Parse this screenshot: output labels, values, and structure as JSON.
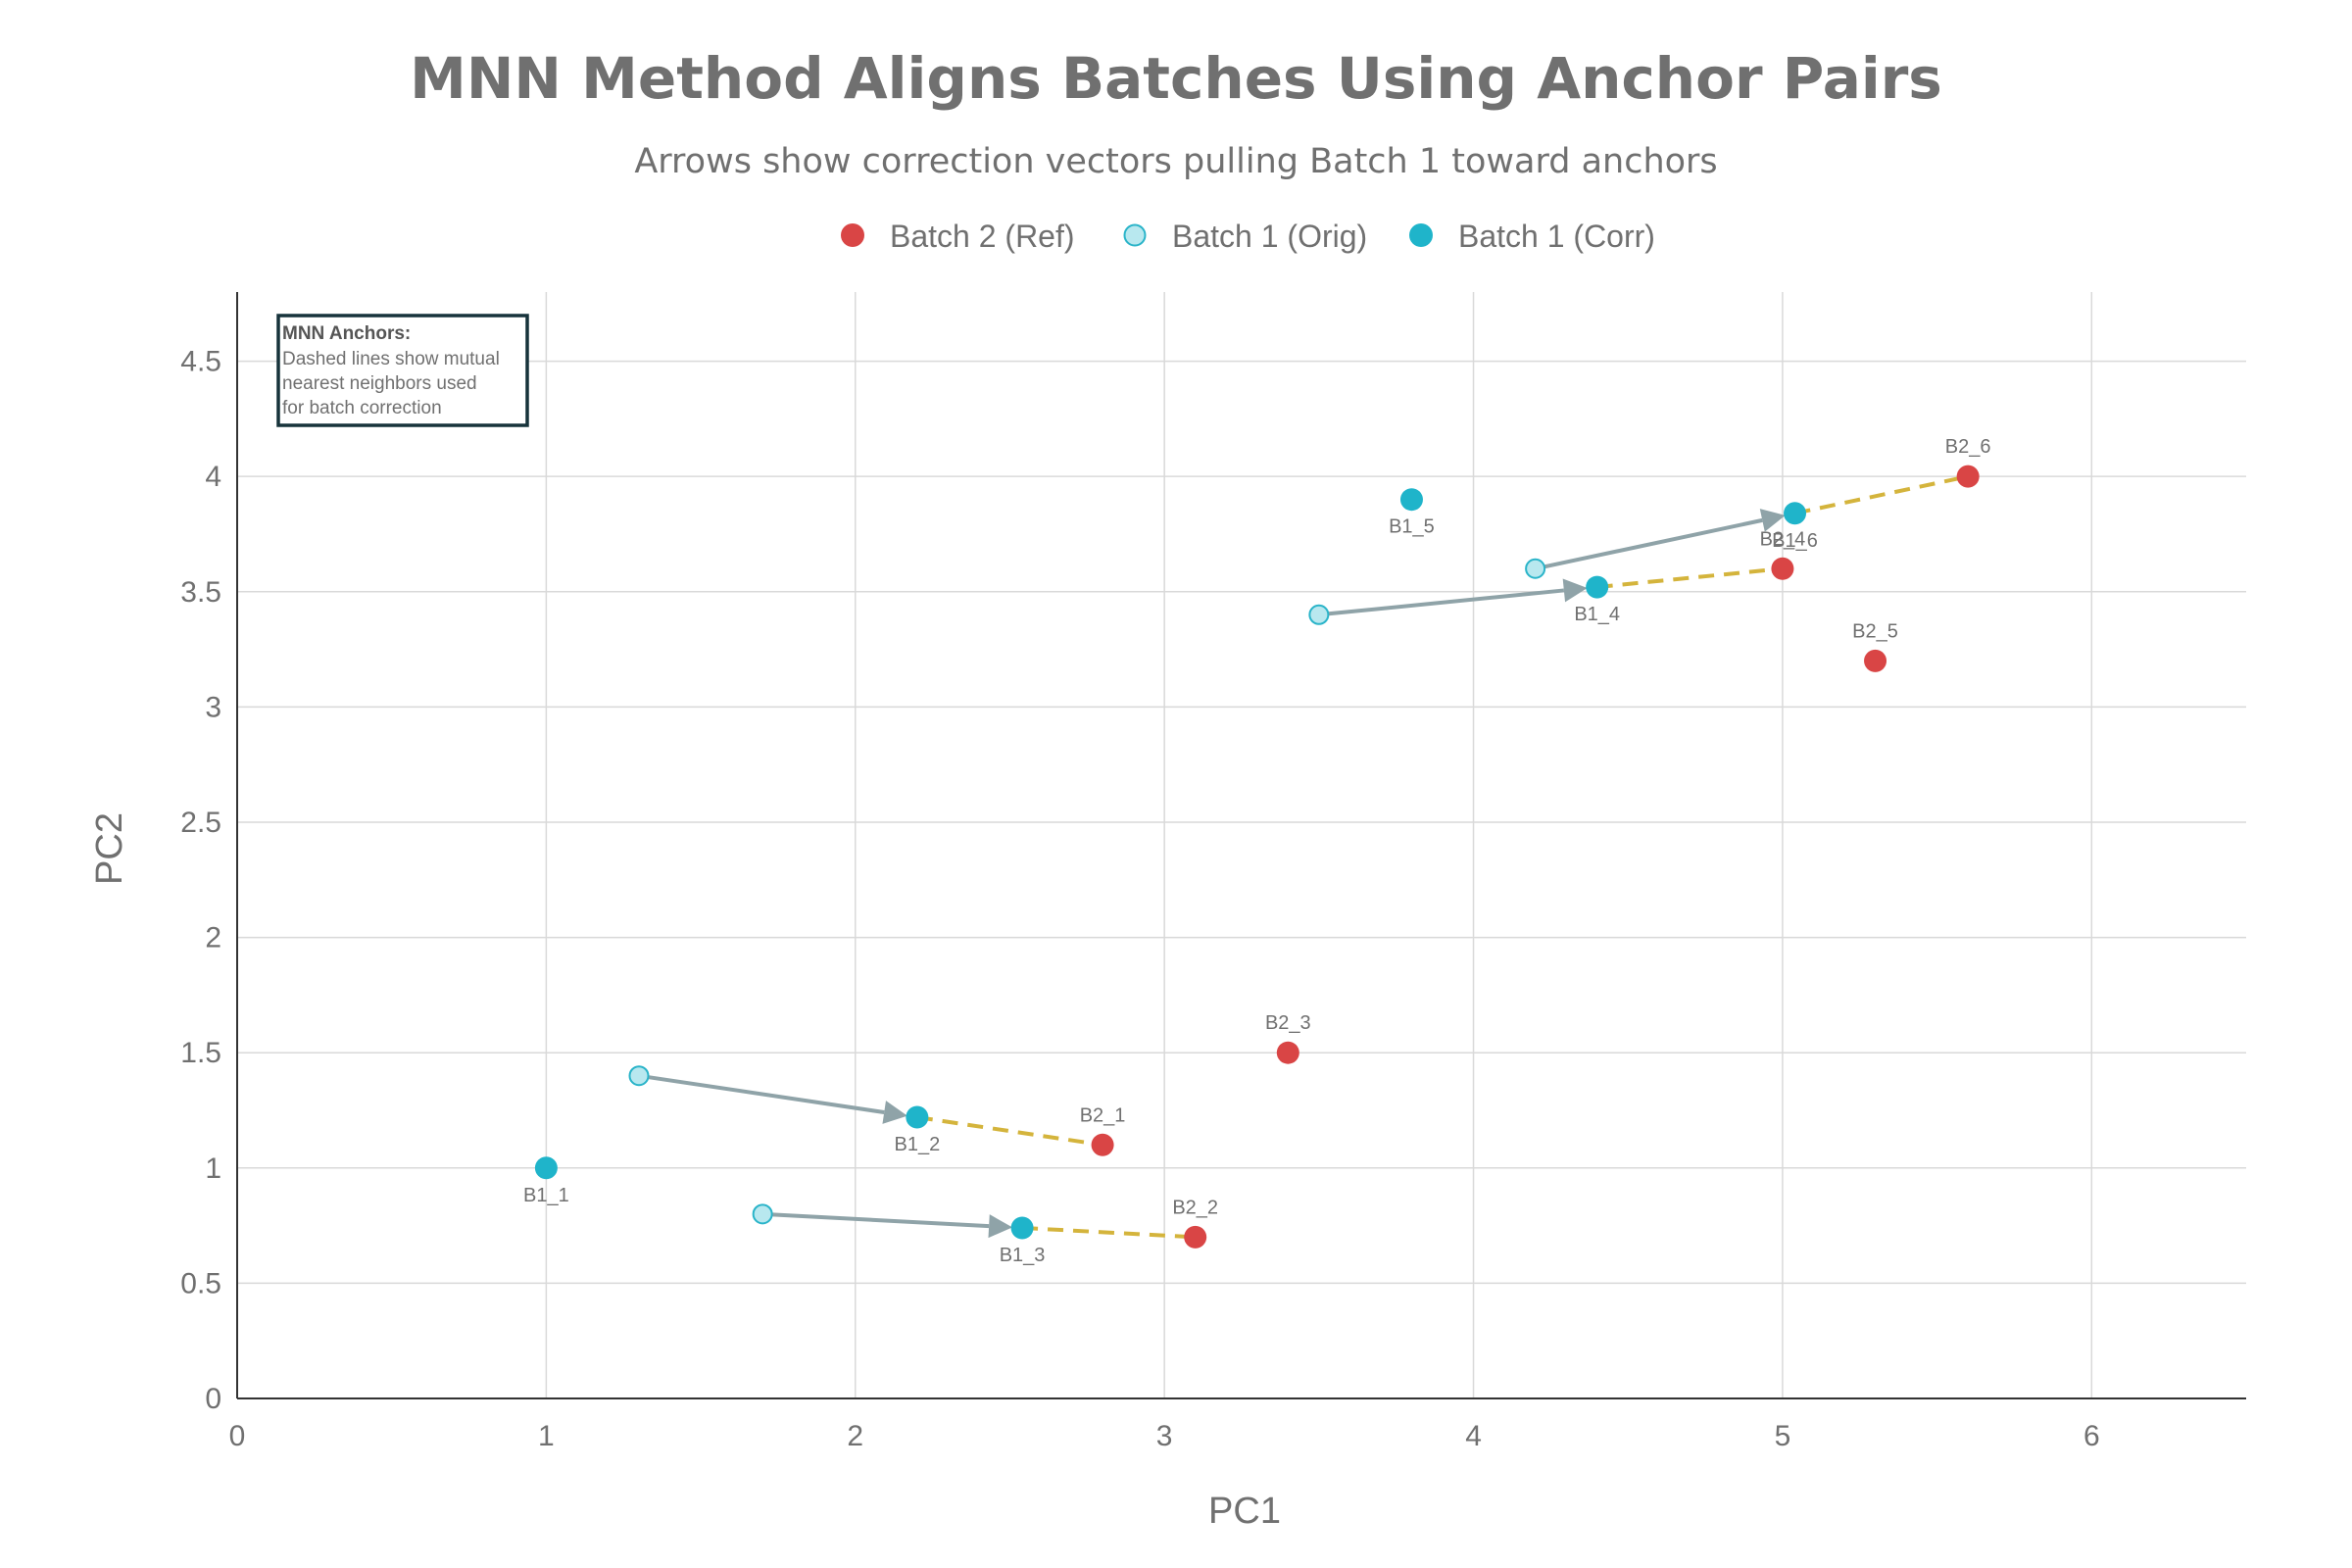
{
  "title": "MNN Method Aligns Batches Using Anchor Pairs",
  "subtitle": "Arrows show correction vectors pulling Batch 1 toward anchors",
  "colors": {
    "batch2": "#d94545",
    "batch1_orig_fill": "#b8e8ef",
    "batch1_orig_stroke": "#2ab4c9",
    "batch1_corr": "#1fb4ca",
    "arrow": "#8fa3a8",
    "anchor_line": "#d4b43c",
    "annotation_border": "#17333b"
  },
  "annotation": {
    "title": "MNN Anchors:",
    "lines": [
      "Dashed lines show mutual",
      "nearest neighbors used",
      "for batch correction"
    ]
  },
  "chart_data": {
    "type": "scatter",
    "xlabel": "PC1",
    "ylabel": "PC2",
    "xlim": [
      0,
      6.5
    ],
    "ylim": [
      0,
      4.8
    ],
    "x_ticks": [
      0,
      1,
      2,
      3,
      4,
      5,
      6
    ],
    "y_ticks": [
      0,
      0.5,
      1,
      1.5,
      2,
      2.5,
      3,
      3.5,
      4,
      4.5
    ],
    "grid": true,
    "legend_position": "top-center",
    "series": [
      {
        "name": "Batch 2 (Ref)",
        "points": [
          {
            "label": "B2_1",
            "x": 2.8,
            "y": 1.1
          },
          {
            "label": "B2_2",
            "x": 3.1,
            "y": 0.7
          },
          {
            "label": "B2_3",
            "x": 3.4,
            "y": 1.5
          },
          {
            "label": "B2_4",
            "x": 5.0,
            "y": 3.6
          },
          {
            "label": "B2_5",
            "x": 5.3,
            "y": 3.2
          },
          {
            "label": "B2_6",
            "x": 5.6,
            "y": 4.0
          }
        ]
      },
      {
        "name": "Batch 1 (Orig)",
        "points": [
          {
            "x": 1.3,
            "y": 1.4
          },
          {
            "x": 1.7,
            "y": 0.8
          },
          {
            "x": 3.5,
            "y": 3.4
          },
          {
            "x": 4.2,
            "y": 3.6
          }
        ]
      },
      {
        "name": "Batch 1 (Corr)",
        "points": [
          {
            "label": "B1_1",
            "x": 1.0,
            "y": 1.0
          },
          {
            "label": "B1_2",
            "x": 2.2,
            "y": 1.22
          },
          {
            "label": "B1_3",
            "x": 2.54,
            "y": 0.74
          },
          {
            "label": "B1_4",
            "x": 4.4,
            "y": 3.52
          },
          {
            "label": "B1_5",
            "x": 3.8,
            "y": 3.9
          },
          {
            "label": "B1_6",
            "x": 5.04,
            "y": 3.84
          }
        ]
      }
    ],
    "correction_arrows": [
      {
        "from": [
          1.3,
          1.4
        ],
        "to": [
          2.2,
          1.22
        ]
      },
      {
        "from": [
          1.7,
          0.8
        ],
        "to": [
          2.54,
          0.74
        ]
      },
      {
        "from": [
          3.5,
          3.4
        ],
        "to": [
          4.4,
          3.52
        ]
      },
      {
        "from": [
          4.2,
          3.6
        ],
        "to": [
          5.04,
          3.84
        ]
      }
    ],
    "anchor_links": [
      {
        "from": [
          2.2,
          1.22
        ],
        "to": [
          2.8,
          1.1
        ]
      },
      {
        "from": [
          2.54,
          0.74
        ],
        "to": [
          3.1,
          0.7
        ]
      },
      {
        "from": [
          4.4,
          3.52
        ],
        "to": [
          5.0,
          3.6
        ]
      },
      {
        "from": [
          5.04,
          3.84
        ],
        "to": [
          5.6,
          4.0
        ]
      }
    ]
  }
}
